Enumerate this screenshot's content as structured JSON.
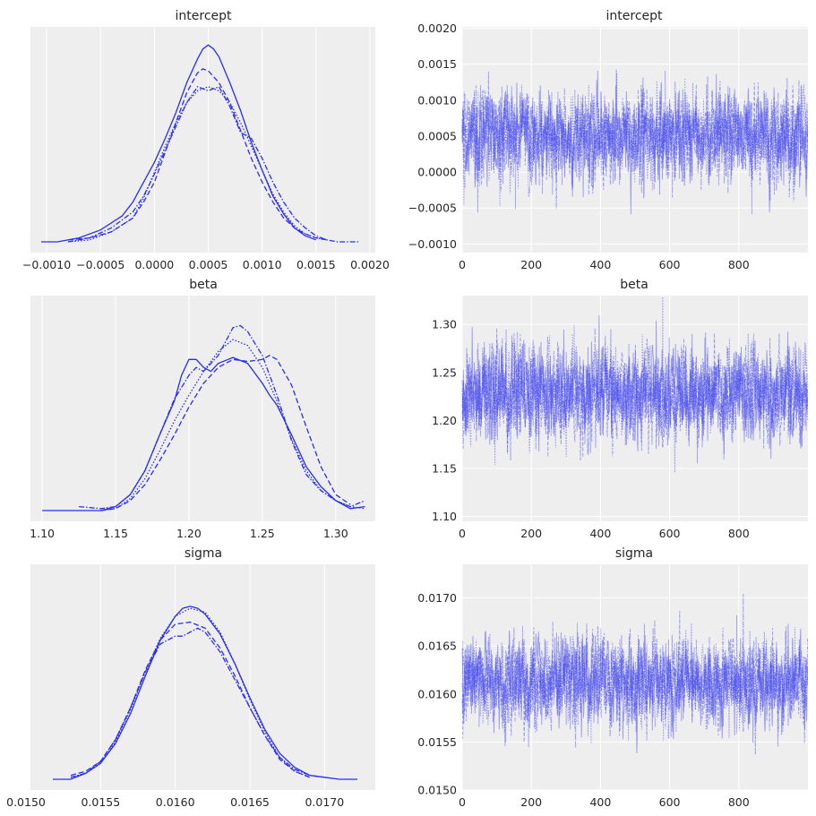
{
  "colors": {
    "line": "#2a2eec",
    "trace": "#4348ee",
    "panel": "#eeeeee"
  },
  "chart_data": [
    {
      "type": "line",
      "kind": "kde",
      "title": "intercept",
      "xlim": [
        -0.00115,
        0.00205
      ],
      "xticks": [
        -0.001,
        -0.0005,
        0.0,
        0.0005,
        0.001,
        0.0015,
        0.002
      ],
      "xtick_labels": [
        "−0.0010",
        "−0.0005",
        "0.0000",
        "0.0005",
        "0.0010",
        "0.0015",
        "0.0020"
      ],
      "yticks": [],
      "grid": "x",
      "series": [
        {
          "dash": "solid",
          "x": [
            -0.00105,
            -0.0009,
            -0.0007,
            -0.0005,
            -0.0003,
            -0.0002,
            -0.0001,
            0.0,
            0.0001,
            0.0002,
            0.0003,
            0.0004,
            0.00045,
            0.0005,
            0.00055,
            0.0006,
            0.0007,
            0.0008,
            0.0009,
            0.001,
            0.0011,
            0.0012,
            0.0013,
            0.0014,
            0.0015
          ],
          "y": [
            0.0,
            0.0,
            0.02,
            0.06,
            0.13,
            0.2,
            0.3,
            0.4,
            0.52,
            0.65,
            0.8,
            0.92,
            0.97,
            0.99,
            0.97,
            0.93,
            0.8,
            0.66,
            0.5,
            0.36,
            0.23,
            0.14,
            0.07,
            0.03,
            0.01
          ]
        },
        {
          "dash": "6,3",
          "x": [
            -0.0008,
            -0.0006,
            -0.0004,
            -0.0002,
            -0.0001,
            0.0,
            0.0001,
            0.0002,
            0.0003,
            0.0004,
            0.00045,
            0.0005,
            0.00055,
            0.0006,
            0.0007,
            0.0008,
            0.0009,
            0.001,
            0.0011,
            0.0012,
            0.0013,
            0.0014,
            0.0015,
            0.0016
          ],
          "y": [
            0.01,
            0.02,
            0.05,
            0.12,
            0.2,
            0.3,
            0.45,
            0.6,
            0.75,
            0.85,
            0.87,
            0.86,
            0.83,
            0.8,
            0.7,
            0.56,
            0.42,
            0.3,
            0.2,
            0.12,
            0.07,
            0.04,
            0.02,
            0.01
          ]
        },
        {
          "dash": "1.5,2",
          "x": [
            -0.0008,
            -0.0006,
            -0.0004,
            -0.0002,
            -0.0001,
            0.0,
            0.0001,
            0.0002,
            0.0003,
            0.0004,
            0.0005,
            0.0006,
            0.0007,
            0.0008,
            0.0009,
            0.001,
            0.0011,
            0.0012,
            0.0013,
            0.0014,
            0.0015,
            0.0016
          ],
          "y": [
            0.0,
            0.01,
            0.05,
            0.12,
            0.22,
            0.35,
            0.48,
            0.6,
            0.7,
            0.76,
            0.78,
            0.76,
            0.7,
            0.6,
            0.48,
            0.36,
            0.24,
            0.15,
            0.08,
            0.04,
            0.02,
            0.01
          ]
        },
        {
          "dash": "6,2,1.5,2",
          "x": [
            -0.0008,
            -0.0006,
            -0.0004,
            -0.0002,
            -0.0001,
            0.0,
            0.0001,
            0.0002,
            0.0003,
            0.0004,
            0.0005,
            0.0006,
            0.0007,
            0.0008,
            0.0009,
            0.001,
            0.0011,
            0.0012,
            0.0013,
            0.0014,
            0.0015,
            0.0016,
            0.0017,
            0.0018,
            0.0019
          ],
          "y": [
            0.0,
            0.02,
            0.07,
            0.15,
            0.23,
            0.34,
            0.46,
            0.58,
            0.7,
            0.78,
            0.76,
            0.78,
            0.68,
            0.55,
            0.52,
            0.42,
            0.3,
            0.2,
            0.12,
            0.07,
            0.03,
            0.01,
            0.0,
            0.0,
            0.0
          ]
        }
      ]
    },
    {
      "type": "line",
      "kind": "trace",
      "title": "intercept",
      "xlim": [
        0,
        1000
      ],
      "ylim": [
        -0.00112,
        0.00202
      ],
      "xticks": [
        0,
        200,
        400,
        600,
        800
      ],
      "xtick_labels": [
        "0",
        "200",
        "400",
        "600",
        "800"
      ],
      "yticks": [
        -0.001,
        -0.0005,
        0.0,
        0.0005,
        0.001,
        0.0015,
        0.002
      ],
      "ytick_labels": [
        "−0.0010",
        "−0.0005",
        "0.0000",
        "0.0005",
        "0.0010",
        "0.0015",
        "0.0020"
      ],
      "grid": "both",
      "draws": 1000,
      "chains": 4,
      "mean": 0.0005,
      "sd": 0.0003
    },
    {
      "type": "line",
      "kind": "kde",
      "title": "beta",
      "xlim": [
        1.092,
        1.327
      ],
      "xticks": [
        1.1,
        1.15,
        1.2,
        1.25,
        1.3
      ],
      "xtick_labels": [
        "1.10",
        "1.15",
        "1.20",
        "1.25",
        "1.30"
      ],
      "yticks": [],
      "grid": "x",
      "series": [
        {
          "dash": "solid",
          "x": [
            1.1,
            1.12,
            1.14,
            1.15,
            1.16,
            1.17,
            1.18,
            1.19,
            1.195,
            1.2,
            1.205,
            1.21,
            1.215,
            1.22,
            1.23,
            1.24,
            1.25,
            1.255,
            1.26,
            1.27,
            1.28,
            1.29,
            1.3,
            1.31,
            1.32
          ],
          "y": [
            0.0,
            0.0,
            0.0,
            0.02,
            0.08,
            0.2,
            0.38,
            0.55,
            0.68,
            0.76,
            0.76,
            0.72,
            0.7,
            0.74,
            0.77,
            0.74,
            0.64,
            0.58,
            0.53,
            0.38,
            0.22,
            0.12,
            0.05,
            0.01,
            0.02
          ]
        },
        {
          "dash": "6,3",
          "x": [
            1.14,
            1.15,
            1.16,
            1.17,
            1.18,
            1.19,
            1.2,
            1.21,
            1.22,
            1.23,
            1.24,
            1.25,
            1.255,
            1.26,
            1.27,
            1.28,
            1.29,
            1.3,
            1.31
          ],
          "y": [
            0.0,
            0.01,
            0.05,
            0.13,
            0.25,
            0.38,
            0.52,
            0.64,
            0.72,
            0.76,
            0.75,
            0.76,
            0.78,
            0.76,
            0.63,
            0.42,
            0.22,
            0.08,
            0.03
          ]
        },
        {
          "dash": "1.5,2",
          "x": [
            1.14,
            1.15,
            1.16,
            1.17,
            1.18,
            1.19,
            1.2,
            1.21,
            1.22,
            1.23,
            1.24,
            1.25,
            1.26,
            1.27,
            1.28,
            1.29,
            1.3,
            1.31,
            1.32
          ],
          "y": [
            0.0,
            0.01,
            0.06,
            0.16,
            0.3,
            0.45,
            0.58,
            0.7,
            0.8,
            0.86,
            0.83,
            0.72,
            0.55,
            0.36,
            0.2,
            0.1,
            0.05,
            0.02,
            0.01
          ]
        },
        {
          "dash": "6,2,1.5,2",
          "x": [
            1.125,
            1.14,
            1.15,
            1.16,
            1.17,
            1.18,
            1.19,
            1.2,
            1.205,
            1.21,
            1.22,
            1.23,
            1.235,
            1.24,
            1.25,
            1.26,
            1.27,
            1.28,
            1.29,
            1.3,
            1.31,
            1.32
          ],
          "y": [
            0.02,
            0.01,
            0.02,
            0.08,
            0.2,
            0.38,
            0.56,
            0.68,
            0.72,
            0.7,
            0.78,
            0.92,
            0.93,
            0.9,
            0.78,
            0.58,
            0.35,
            0.18,
            0.1,
            0.05,
            0.02,
            0.05
          ]
        }
      ]
    },
    {
      "type": "line",
      "kind": "trace",
      "title": "beta",
      "xlim": [
        0,
        1000
      ],
      "ylim": [
        1.095,
        1.33
      ],
      "xticks": [
        0,
        200,
        400,
        600,
        800
      ],
      "xtick_labels": [
        "0",
        "200",
        "400",
        "600",
        "800"
      ],
      "yticks": [
        1.1,
        1.15,
        1.2,
        1.25,
        1.3
      ],
      "ytick_labels": [
        "1.10",
        "1.15",
        "1.20",
        "1.25",
        "1.30"
      ],
      "grid": "both",
      "draws": 1000,
      "chains": 4,
      "mean": 1.228,
      "sd": 0.024
    },
    {
      "type": "line",
      "kind": "kde",
      "title": "sigma",
      "xlim": [
        0.01503,
        0.01734
      ],
      "xticks": [
        0.015,
        0.0155,
        0.016,
        0.0165,
        0.017
      ],
      "xtick_labels": [
        "0.0150",
        "0.0155",
        "0.0160",
        "0.0165",
        "0.0170"
      ],
      "yticks": [],
      "grid": "x",
      "series": [
        {
          "dash": "solid",
          "x": [
            0.01518,
            0.0153,
            0.0154,
            0.0155,
            0.0156,
            0.0157,
            0.0158,
            0.0159,
            0.016,
            0.01605,
            0.0161,
            0.01615,
            0.0162,
            0.0163,
            0.0164,
            0.0165,
            0.0166,
            0.0167,
            0.0168,
            0.0169,
            0.017,
            0.0171,
            0.01722
          ],
          "y": [
            0.0,
            0.0,
            0.03,
            0.08,
            0.18,
            0.33,
            0.52,
            0.7,
            0.82,
            0.86,
            0.87,
            0.86,
            0.83,
            0.73,
            0.58,
            0.41,
            0.25,
            0.13,
            0.06,
            0.02,
            0.01,
            0.0,
            0.0
          ]
        },
        {
          "dash": "6,3",
          "x": [
            0.0153,
            0.0154,
            0.0155,
            0.0156,
            0.0157,
            0.0158,
            0.0159,
            0.016,
            0.0161,
            0.0162,
            0.0163,
            0.0164,
            0.0165,
            0.0166,
            0.0167,
            0.0168,
            0.0169
          ],
          "y": [
            0.02,
            0.04,
            0.09,
            0.2,
            0.36,
            0.55,
            0.7,
            0.78,
            0.79,
            0.76,
            0.66,
            0.52,
            0.36,
            0.22,
            0.1,
            0.04,
            0.01
          ]
        },
        {
          "dash": "1.5,2",
          "x": [
            0.0153,
            0.0154,
            0.0155,
            0.0156,
            0.0157,
            0.0158,
            0.0159,
            0.016,
            0.0161,
            0.0162,
            0.0163,
            0.0164,
            0.0165,
            0.0166,
            0.0167,
            0.0168,
            0.0169
          ],
          "y": [
            0.01,
            0.03,
            0.08,
            0.19,
            0.35,
            0.54,
            0.71,
            0.82,
            0.86,
            0.84,
            0.74,
            0.58,
            0.4,
            0.24,
            0.11,
            0.04,
            0.01
          ]
        },
        {
          "dash": "6,2,1.5,2",
          "x": [
            0.0153,
            0.0154,
            0.0155,
            0.0156,
            0.0157,
            0.0158,
            0.0159,
            0.016,
            0.01605,
            0.0161,
            0.01615,
            0.0162,
            0.0163,
            0.0164,
            0.0165,
            0.0166,
            0.0167,
            0.0168,
            0.0169,
            0.017
          ],
          "y": [
            0.01,
            0.03,
            0.09,
            0.2,
            0.36,
            0.54,
            0.68,
            0.72,
            0.72,
            0.74,
            0.76,
            0.74,
            0.64,
            0.5,
            0.36,
            0.22,
            0.11,
            0.05,
            0.02,
            0.01
          ]
        }
      ]
    },
    {
      "type": "line",
      "kind": "trace",
      "title": "sigma",
      "xlim": [
        0,
        1000
      ],
      "ylim": [
        0.015,
        0.01735
      ],
      "xticks": [
        0,
        200,
        400,
        600,
        800
      ],
      "xtick_labels": [
        "0",
        "200",
        "400",
        "600",
        "800"
      ],
      "yticks": [
        0.015,
        0.0155,
        0.016,
        0.0165,
        0.017
      ],
      "ytick_labels": [
        "0.0150",
        "0.0155",
        "0.0160",
        "0.0165",
        "0.0170"
      ],
      "grid": "both",
      "draws": 1000,
      "chains": 4,
      "mean": 0.01612,
      "sd": 0.00022
    }
  ]
}
